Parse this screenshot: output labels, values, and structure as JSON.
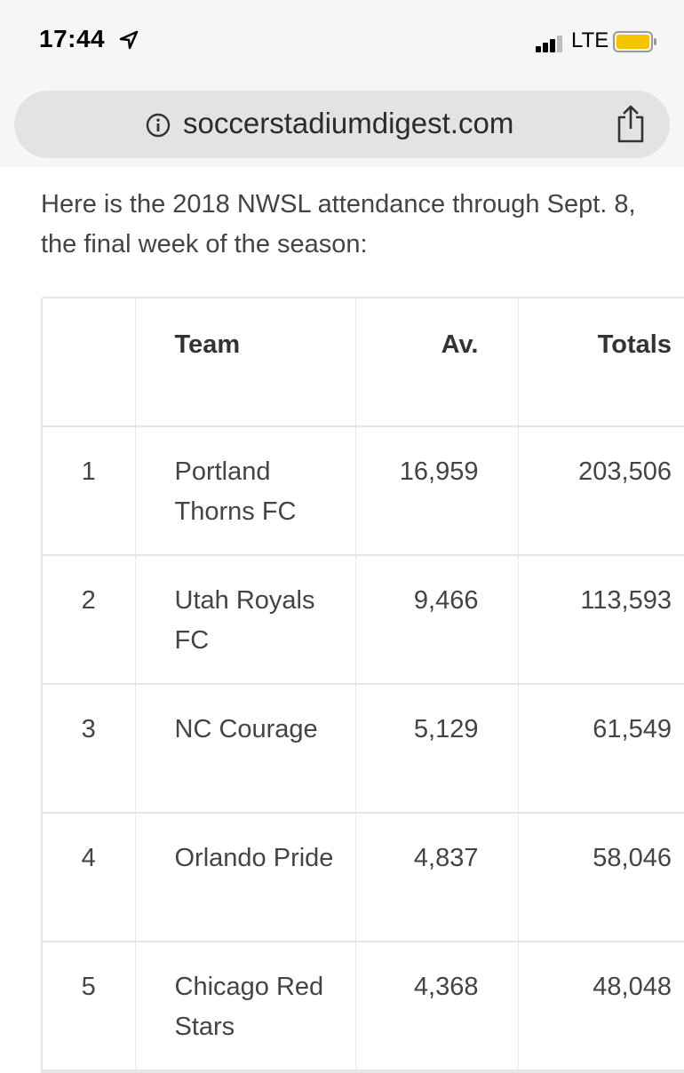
{
  "status_bar": {
    "time": "17:44",
    "network": "LTE",
    "battery_color": "#f5c400"
  },
  "browser": {
    "url": "soccerstadiumdigest.com"
  },
  "article": {
    "intro": "Here is the 2018 NWSL attendance through Sept. 8, the final week of the season:"
  },
  "table": {
    "headers": [
      "",
      "Team",
      "Av.",
      "Totals"
    ],
    "rows": [
      {
        "rank": "1",
        "team": "Portland Thorns FC",
        "avg": "16,959",
        "total": "203,506"
      },
      {
        "rank": "2",
        "team": "Utah Royals FC",
        "avg": "9,466",
        "total": "113,593"
      },
      {
        "rank": "3",
        "team": "NC Courage",
        "avg": "5,129",
        "total": "61,549"
      },
      {
        "rank": "4",
        "team": "Orlando Pride",
        "avg": "4,837",
        "total": "58,046"
      },
      {
        "rank": "5",
        "team": "Chicago Red Stars",
        "avg": "4,368",
        "total": "48,048"
      }
    ]
  }
}
